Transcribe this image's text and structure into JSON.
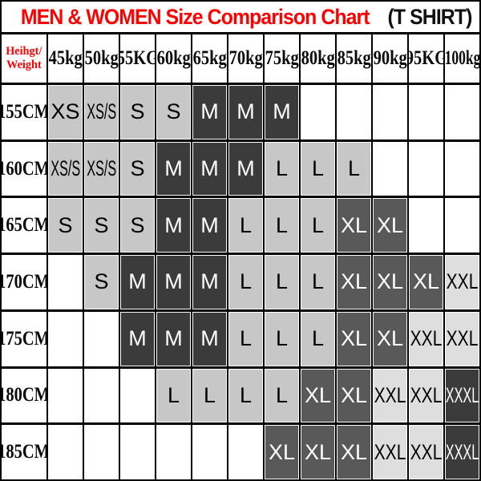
{
  "title": {
    "main": "MEN & WOMEN Size Comparison Chart",
    "suffix": "(T SHIRT)"
  },
  "colors": {
    "title_red": "#ff0000",
    "border": "#000000",
    "fills": {
      "light": {
        "bg": "#c7c7c7",
        "fg": "#000000"
      },
      "dark": {
        "bg": "#3b3b3b",
        "fg": "#ffffff"
      },
      "mid": {
        "bg": "#595959",
        "fg": "#ffffff"
      },
      "xlight": {
        "bg": "#dedede",
        "fg": "#000000"
      }
    }
  },
  "table": {
    "corner_line1": "Heihgt/",
    "corner_line2": "Weight",
    "weight_headers": [
      "45kg",
      "50kg",
      "55KG",
      "60kg",
      "65kg",
      "70kg",
      "75kg",
      "80kg",
      "85kg",
      "90kg",
      "95KG",
      "100kg"
    ],
    "rows": [
      {
        "height": "155CM",
        "cells": [
          {
            "label": "XS",
            "fill": "light"
          },
          {
            "label": "XS/S",
            "fill": "light"
          },
          {
            "label": "S",
            "fill": "light"
          },
          {
            "label": "S",
            "fill": "light"
          },
          {
            "label": "M",
            "fill": "dark"
          },
          {
            "label": "M",
            "fill": "dark"
          },
          {
            "label": "M",
            "fill": "dark"
          },
          {
            "label": "",
            "fill": ""
          },
          {
            "label": "",
            "fill": ""
          },
          {
            "label": "",
            "fill": ""
          },
          {
            "label": "",
            "fill": ""
          },
          {
            "label": "",
            "fill": ""
          }
        ]
      },
      {
        "height": "160CM",
        "cells": [
          {
            "label": "XS/S",
            "fill": "light"
          },
          {
            "label": "XS/S",
            "fill": "light"
          },
          {
            "label": "S",
            "fill": "light"
          },
          {
            "label": "M",
            "fill": "dark"
          },
          {
            "label": "M",
            "fill": "dark"
          },
          {
            "label": "M",
            "fill": "dark"
          },
          {
            "label": "L",
            "fill": "light"
          },
          {
            "label": "L",
            "fill": "light"
          },
          {
            "label": "L",
            "fill": "light"
          },
          {
            "label": "",
            "fill": ""
          },
          {
            "label": "",
            "fill": ""
          },
          {
            "label": "",
            "fill": ""
          }
        ]
      },
      {
        "height": "165CM",
        "cells": [
          {
            "label": "S",
            "fill": "light"
          },
          {
            "label": "S",
            "fill": "light"
          },
          {
            "label": "S",
            "fill": "light"
          },
          {
            "label": "M",
            "fill": "dark"
          },
          {
            "label": "M",
            "fill": "dark"
          },
          {
            "label": "L",
            "fill": "light"
          },
          {
            "label": "L",
            "fill": "light"
          },
          {
            "label": "L",
            "fill": "light"
          },
          {
            "label": "XL",
            "fill": "mid"
          },
          {
            "label": "XL",
            "fill": "mid"
          },
          {
            "label": "",
            "fill": ""
          },
          {
            "label": "",
            "fill": ""
          }
        ]
      },
      {
        "height": "170CM",
        "cells": [
          {
            "label": "",
            "fill": ""
          },
          {
            "label": "S",
            "fill": "light"
          },
          {
            "label": "M",
            "fill": "dark"
          },
          {
            "label": "M",
            "fill": "dark"
          },
          {
            "label": "M",
            "fill": "dark"
          },
          {
            "label": "L",
            "fill": "light"
          },
          {
            "label": "L",
            "fill": "light"
          },
          {
            "label": "L",
            "fill": "light"
          },
          {
            "label": "XL",
            "fill": "mid"
          },
          {
            "label": "XL",
            "fill": "mid"
          },
          {
            "label": "XL",
            "fill": "mid"
          },
          {
            "label": "XXL",
            "fill": "xlight"
          }
        ]
      },
      {
        "height": "175CM",
        "cells": [
          {
            "label": "",
            "fill": ""
          },
          {
            "label": "",
            "fill": ""
          },
          {
            "label": "M",
            "fill": "dark"
          },
          {
            "label": "M",
            "fill": "dark"
          },
          {
            "label": "M",
            "fill": "dark"
          },
          {
            "label": "L",
            "fill": "light"
          },
          {
            "label": "L",
            "fill": "light"
          },
          {
            "label": "L",
            "fill": "light"
          },
          {
            "label": "XL",
            "fill": "mid"
          },
          {
            "label": "XL",
            "fill": "mid"
          },
          {
            "label": "XXL",
            "fill": "xlight"
          },
          {
            "label": "XXL",
            "fill": "xlight"
          }
        ]
      },
      {
        "height": "180CM",
        "cells": [
          {
            "label": "",
            "fill": ""
          },
          {
            "label": "",
            "fill": ""
          },
          {
            "label": "",
            "fill": ""
          },
          {
            "label": "L",
            "fill": "light"
          },
          {
            "label": "L",
            "fill": "light"
          },
          {
            "label": "L",
            "fill": "light"
          },
          {
            "label": "L",
            "fill": "light"
          },
          {
            "label": "XL",
            "fill": "mid"
          },
          {
            "label": "XL",
            "fill": "mid"
          },
          {
            "label": "XXL",
            "fill": "xlight"
          },
          {
            "label": "XXL",
            "fill": "xlight"
          },
          {
            "label": "XXXL",
            "fill": "dark"
          }
        ]
      },
      {
        "height": "185CM",
        "cells": [
          {
            "label": "",
            "fill": ""
          },
          {
            "label": "",
            "fill": ""
          },
          {
            "label": "",
            "fill": ""
          },
          {
            "label": "",
            "fill": ""
          },
          {
            "label": "",
            "fill": ""
          },
          {
            "label": "",
            "fill": ""
          },
          {
            "label": "XL",
            "fill": "mid"
          },
          {
            "label": "XL",
            "fill": "mid"
          },
          {
            "label": "XL",
            "fill": "mid"
          },
          {
            "label": "XXL",
            "fill": "xlight"
          },
          {
            "label": "XXL",
            "fill": "xlight"
          },
          {
            "label": "XXXL",
            "fill": "dark"
          }
        ]
      }
    ]
  }
}
